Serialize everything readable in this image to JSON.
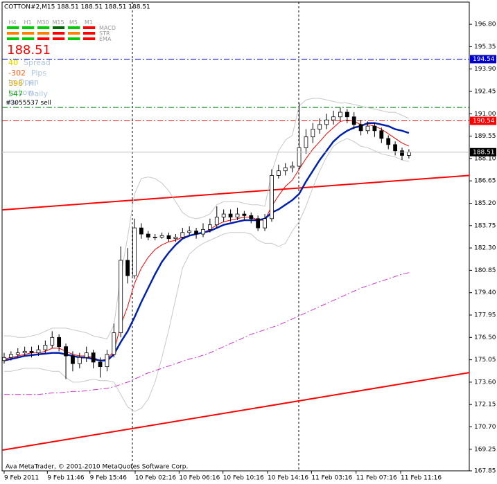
{
  "chart_data": {
    "type": "candlestick",
    "title": "COTTON#2,M15  188.51 188.51 188.51 188.51",
    "opens": [
      175.0,
      175.2,
      175.4,
      175.5,
      175.6,
      175.5,
      175.7,
      176.0,
      176.5,
      175.9,
      175.3,
      174.8,
      175.2,
      175.5,
      174.9,
      174.6,
      175.4,
      176.8,
      181.5,
      180.5,
      183.6,
      183.2,
      183.0,
      183.0,
      183.1,
      182.9,
      183.0,
      183.3,
      183.4,
      183.2,
      183.5,
      183.8,
      184.3,
      184.5,
      184.3,
      184.5,
      184.4,
      184.2,
      183.6,
      184.2,
      187.0,
      187.3,
      187.5,
      187.6,
      188.8,
      189.5,
      190.0,
      190.3,
      190.6,
      190.8,
      191.1,
      190.8,
      190.3,
      189.9,
      190.2,
      189.9,
      189.4,
      189.0,
      188.6,
      188.3
    ],
    "highs": [
      175.5,
      175.6,
      175.8,
      175.9,
      175.9,
      176.0,
      176.3,
      176.9,
      176.7,
      176.1,
      175.6,
      175.5,
      175.9,
      175.7,
      175.2,
      175.7,
      177.4,
      182.4,
      182.3,
      184.2,
      183.9,
      183.4,
      183.2,
      183.3,
      183.3,
      183.2,
      183.6,
      183.7,
      183.6,
      183.9,
      184.2,
      185.0,
      184.8,
      184.8,
      184.9,
      184.7,
      184.6,
      184.4,
      184.5,
      187.4,
      187.7,
      187.8,
      187.9,
      191.7,
      190.0,
      190.4,
      190.7,
      191.0,
      191.2,
      191.4,
      191.3,
      191.1,
      190.6,
      190.5,
      190.4,
      190.1,
      189.6,
      189.2,
      188.8,
      188.7
    ],
    "lows": [
      174.8,
      175.0,
      175.2,
      175.3,
      175.2,
      175.3,
      175.5,
      175.8,
      175.6,
      173.8,
      174.3,
      174.5,
      174.9,
      174.5,
      173.9,
      174.3,
      175.2,
      176.5,
      180.0,
      180.3,
      182.9,
      182.8,
      182.8,
      182.9,
      182.7,
      182.7,
      182.9,
      183.1,
      182.9,
      183.0,
      183.3,
      183.6,
      184.0,
      184.0,
      184.1,
      184.1,
      183.9,
      183.4,
      183.4,
      184.0,
      186.8,
      187.0,
      187.2,
      187.4,
      188.4,
      189.1,
      189.7,
      190.0,
      190.3,
      190.5,
      190.4,
      190.0,
      189.6,
      189.7,
      189.5,
      189.1,
      188.7,
      188.3,
      188.0,
      188.1
    ],
    "closes": [
      175.2,
      175.4,
      175.5,
      175.6,
      175.5,
      175.7,
      176.0,
      176.5,
      175.9,
      175.3,
      174.8,
      175.2,
      175.5,
      174.9,
      174.6,
      175.4,
      176.8,
      181.5,
      180.5,
      183.6,
      183.2,
      183.0,
      183.0,
      183.1,
      182.9,
      183.0,
      183.3,
      183.4,
      183.2,
      183.5,
      183.8,
      184.3,
      184.5,
      184.3,
      184.5,
      184.4,
      184.2,
      183.6,
      184.2,
      187.0,
      187.3,
      187.5,
      187.6,
      188.8,
      189.5,
      190.0,
      190.3,
      190.6,
      190.8,
      191.1,
      190.8,
      190.3,
      189.9,
      190.2,
      189.9,
      189.4,
      189.0,
      188.6,
      188.3,
      188.51
    ],
    "up_color": "#ffffff",
    "down_color": "#000000",
    "series": [
      {
        "color": "#c8c8c8",
        "width": 1,
        "dash": "none",
        "values": [
          176.6,
          176.6,
          176.5,
          176.5,
          176.6,
          176.7,
          176.9,
          177.1,
          177.1,
          177.1,
          177.0,
          176.9,
          176.8,
          176.6,
          176.5,
          176.4,
          177.3,
          180.5,
          183.0,
          185.8,
          186.8,
          186.9,
          186.8,
          186.5,
          186.0,
          185.3,
          184.6,
          184.3,
          184.2,
          184.3,
          184.5,
          185.1,
          185.3,
          185.3,
          185.3,
          185.2,
          185.1,
          185.1,
          185.0,
          187.2,
          188.6,
          189.3,
          189.6,
          191.5,
          191.9,
          192.0,
          192.0,
          191.9,
          191.8,
          191.7,
          191.7,
          191.6,
          191.5,
          191.4,
          191.3,
          191.2,
          191.1,
          191.1,
          190.9,
          190.7
        ]
      },
      {
        "color": "#c8c8c8",
        "width": 1,
        "dash": "none",
        "values": [
          174.3,
          174.3,
          174.4,
          174.5,
          174.5,
          174.5,
          174.4,
          174.3,
          174.3,
          173.9,
          173.6,
          173.6,
          173.7,
          173.8,
          173.7,
          173.7,
          173.6,
          172.8,
          172.0,
          171.7,
          171.9,
          172.5,
          173.6,
          175.2,
          177.0,
          179.0,
          181.0,
          181.9,
          182.3,
          182.6,
          182.8,
          183.0,
          183.2,
          183.3,
          183.3,
          183.3,
          183.2,
          182.8,
          182.6,
          182.6,
          182.4,
          182.6,
          183.4,
          184.0,
          185.0,
          186.2,
          187.3,
          188.2,
          188.9,
          189.2,
          189.4,
          189.2,
          188.9,
          188.8,
          188.6,
          188.4,
          188.3,
          188.2,
          188.0,
          187.9
        ]
      },
      {
        "color": "#cc33cc",
        "width": 1,
        "dash": "8 3 2 3",
        "values": [
          172.8,
          172.8,
          172.8,
          172.8,
          172.8,
          172.8,
          172.85,
          172.9,
          172.9,
          172.95,
          173.0,
          173.0,
          173.05,
          173.1,
          173.15,
          173.2,
          173.3,
          173.45,
          173.6,
          173.8,
          174.0,
          174.2,
          174.35,
          174.5,
          174.65,
          174.8,
          174.95,
          175.1,
          175.2,
          175.35,
          175.5,
          175.7,
          175.9,
          176.1,
          176.3,
          176.5,
          176.7,
          176.85,
          177.0,
          177.15,
          177.3,
          177.5,
          177.7,
          177.9,
          178.1,
          178.3,
          178.5,
          178.7,
          178.9,
          179.1,
          179.3,
          179.5,
          179.7,
          179.85,
          180.0,
          180.15,
          180.3,
          180.45,
          180.6,
          180.7
        ]
      },
      {
        "color": "#ff0000",
        "width": 1,
        "dash": "none",
        "values": [
          175.1,
          175.2,
          175.3,
          175.4,
          175.5,
          175.5,
          175.6,
          175.8,
          175.8,
          175.6,
          175.4,
          175.3,
          175.3,
          175.2,
          175.0,
          175.1,
          175.6,
          177.3,
          178.5,
          180.0,
          181.0,
          181.7,
          182.2,
          182.5,
          182.7,
          182.8,
          183.0,
          183.1,
          183.2,
          183.3,
          183.5,
          183.8,
          184.0,
          184.1,
          184.2,
          184.3,
          184.3,
          184.1,
          184.1,
          185.0,
          185.7,
          186.3,
          186.7,
          187.4,
          188.1,
          188.7,
          189.2,
          189.7,
          190.1,
          190.5,
          190.6,
          190.5,
          190.3,
          190.3,
          190.2,
          190.0,
          189.7,
          189.4,
          189.1,
          188.9
        ]
      },
      {
        "color": "#0020b0",
        "width": 2.5,
        "dash": "none",
        "values": [
          175.0,
          175.1,
          175.2,
          175.3,
          175.35,
          175.4,
          175.45,
          175.5,
          175.5,
          175.4,
          175.3,
          175.2,
          175.2,
          175.1,
          175.0,
          175.0,
          175.4,
          176.2,
          176.9,
          177.8,
          178.8,
          179.7,
          180.6,
          181.4,
          182.0,
          182.5,
          182.9,
          183.1,
          183.2,
          183.3,
          183.4,
          183.6,
          183.8,
          183.9,
          184.0,
          184.1,
          184.1,
          184.1,
          184.2,
          184.6,
          184.8,
          185.1,
          185.4,
          185.8,
          186.6,
          187.3,
          188.0,
          188.6,
          189.2,
          189.6,
          189.9,
          190.1,
          190.2,
          190.4,
          190.4,
          190.3,
          190.2,
          190.0,
          189.9,
          189.75
        ]
      }
    ],
    "trendlines": [
      {
        "color": "#ff0000",
        "values": [
          184.77,
          187.0
        ]
      },
      {
        "color": "#ff0000",
        "values": [
          169.19,
          174.22
        ]
      }
    ],
    "hlines": [
      {
        "value": 194.54,
        "color": "#0000cc",
        "boxed": true
      },
      {
        "value": 191.41,
        "color": "#008000",
        "boxed": false
      },
      {
        "value": 190.54,
        "color": "#ff0000",
        "boxed": true
      }
    ],
    "xlim": [
      -0.3,
      67.8
    ],
    "ylim": [
      167.85,
      198.24
    ],
    "yticks": [
      {
        "value": 196.8,
        "label": "196.80"
      },
      195.35,
      {
        "value": 193.9,
        "label": "193.90"
      },
      192.45,
      {
        "value": 191,
        "label": "191.00"
      },
      189.55,
      {
        "value": 188.1,
        "label": "188.10"
      },
      186.65,
      {
        "value": 185.2,
        "label": "185.20"
      },
      183.75,
      {
        "value": 182.3,
        "label": "182.30"
      },
      180.85,
      {
        "value": 179.4,
        "label": "179.40"
      },
      177.95,
      {
        "value": 176.5,
        "label": "176.50"
      },
      175.05,
      {
        "value": 173.6,
        "label": "173.60"
      },
      172.15,
      {
        "value": 170.7,
        "label": "170.70"
      },
      169.25,
      167.85
    ],
    "xticks": [
      {
        "value": 0,
        "label": "9 Feb 2011"
      },
      {
        "value": 6.3,
        "label": "9 Feb 11:46"
      },
      {
        "value": 12.5,
        "label": "9 Feb 15:46"
      },
      {
        "value": 19.1,
        "label": "10 Feb 02:16"
      },
      {
        "value": 25.5,
        "label": "10 Feb 06:16"
      },
      {
        "value": 31.9,
        "label": "10 Feb 10:16"
      },
      {
        "value": 38.4,
        "label": "10 Feb 14:16"
      },
      {
        "value": 44.8,
        "label": "11 Feb 03:16"
      },
      {
        "value": 51.3,
        "label": "11 Feb 07:16"
      },
      {
        "value": 57.8,
        "label": "11 Feb 11:16"
      }
    ],
    "footer": "Ava MetaTrader, © 2001-2010 MetaQuotes Software Corp."
  },
  "panel": {
    "timeframes": [
      "H4",
      "H1",
      "M30",
      "M15",
      "M5",
      "M1"
    ],
    "indicators": [
      "MACD",
      "STR",
      "EMA"
    ],
    "signal_colors": [
      [
        "#00cc00",
        "#00cc00",
        "#00cc00",
        "#006600",
        "#00cc00",
        "#ff0000"
      ],
      [
        "#ff8000",
        "#ff8000",
        "#ff8000",
        "#ff0000",
        "#ff8000",
        "#ff0000"
      ],
      [
        "#00cc00",
        "#00cc00",
        "#ff0000",
        "#ff0000",
        "#00cc00",
        "#ff0000"
      ]
    ],
    "price": "188.51",
    "stats": [
      {
        "value": "40",
        "label": "Spread",
        "color": "#e8d000"
      },
      {
        "value": "-302",
        "label": "Pips to Open",
        "color": "#ff6020"
      },
      {
        "value": "398",
        "label": "Hi to Low",
        "color": "#e8b000"
      },
      {
        "value": "547",
        "label": "Daily Av",
        "color": "#00bb00"
      }
    ],
    "order": "#3055537 sell"
  }
}
